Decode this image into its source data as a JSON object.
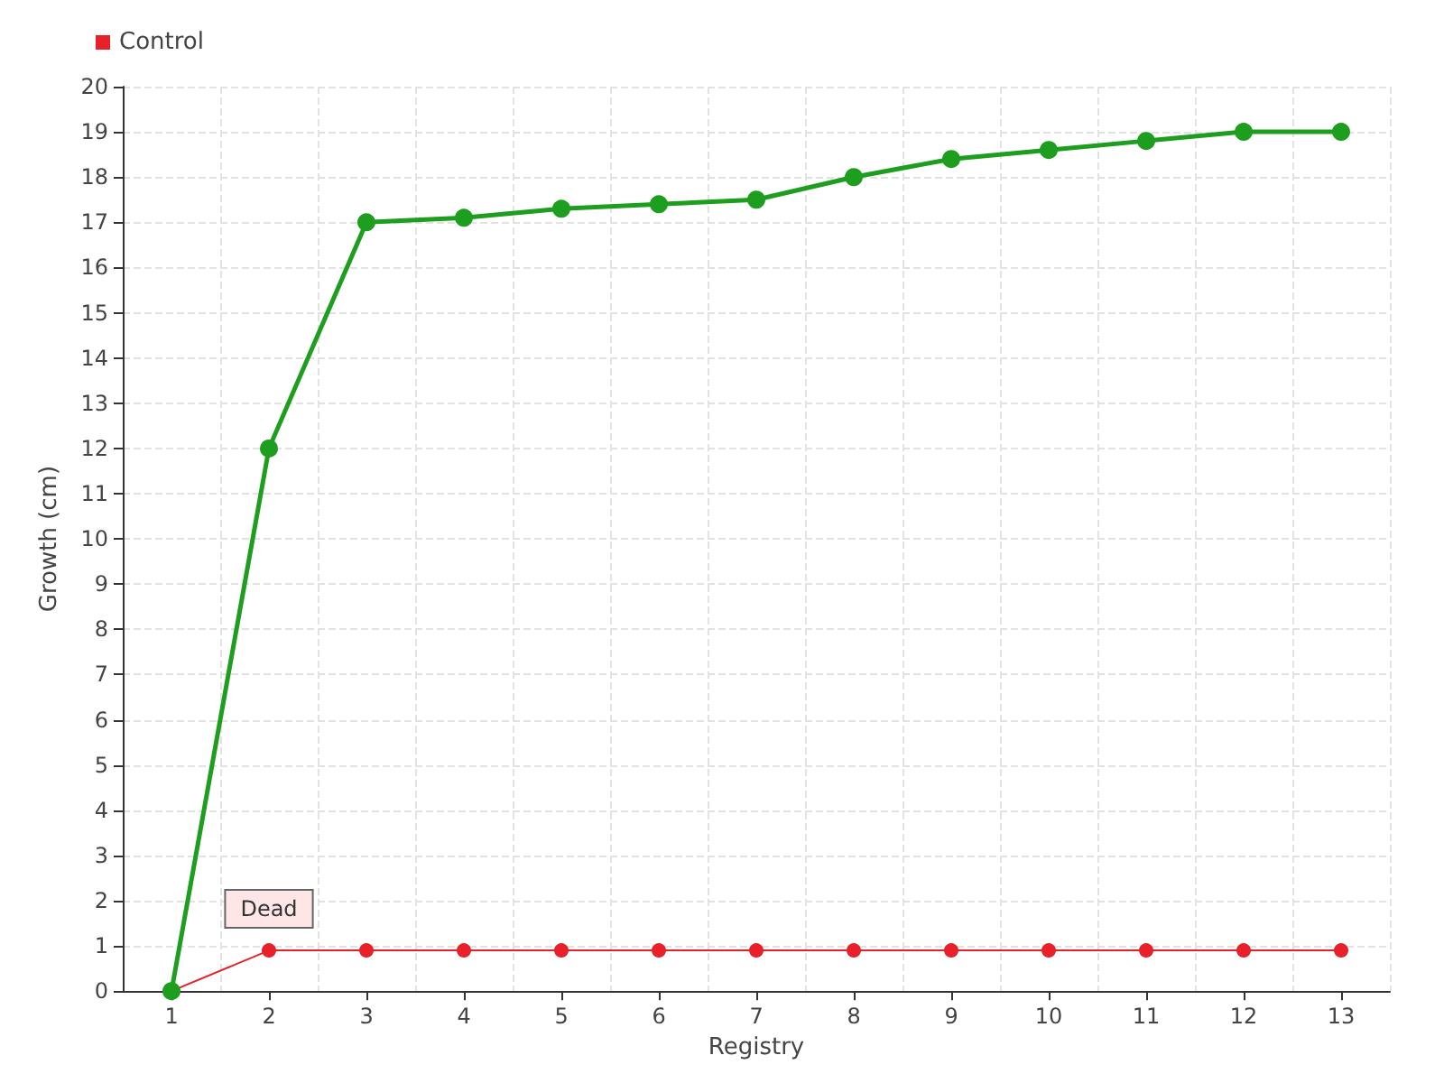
{
  "chart_data": {
    "type": "line",
    "xlabel": "Registry",
    "ylabel": "Growth (cm)",
    "categories": [
      "1",
      "2",
      "3",
      "4",
      "5",
      "6",
      "7",
      "8",
      "9",
      "10",
      "11",
      "12",
      "13"
    ],
    "series": [
      {
        "color": "#1e9e1e",
        "values": [
          0,
          12,
          17,
          17.1,
          17.3,
          17.4,
          17.5,
          18,
          18.4,
          18.6,
          18.8,
          19,
          19
        ]
      },
      {
        "name": "Control",
        "color": "#e8202a",
        "values": [
          0,
          0.9,
          0.9,
          0.9,
          0.9,
          0.9,
          0.9,
          0.9,
          0.9,
          0.9,
          0.9,
          0.9,
          0.9
        ]
      }
    ],
    "ylim": [
      0,
      20
    ],
    "yticks": [
      0,
      1,
      2,
      3,
      4,
      5,
      6,
      7,
      8,
      9,
      10,
      11,
      12,
      13,
      14,
      15,
      16,
      17,
      18,
      19,
      20
    ],
    "annotations": [
      {
        "text": "Dead",
        "x": "2",
        "y": 0.9
      }
    ],
    "grid": true,
    "legend": "top left",
    "marker": "circle",
    "line_style": "solid"
  }
}
